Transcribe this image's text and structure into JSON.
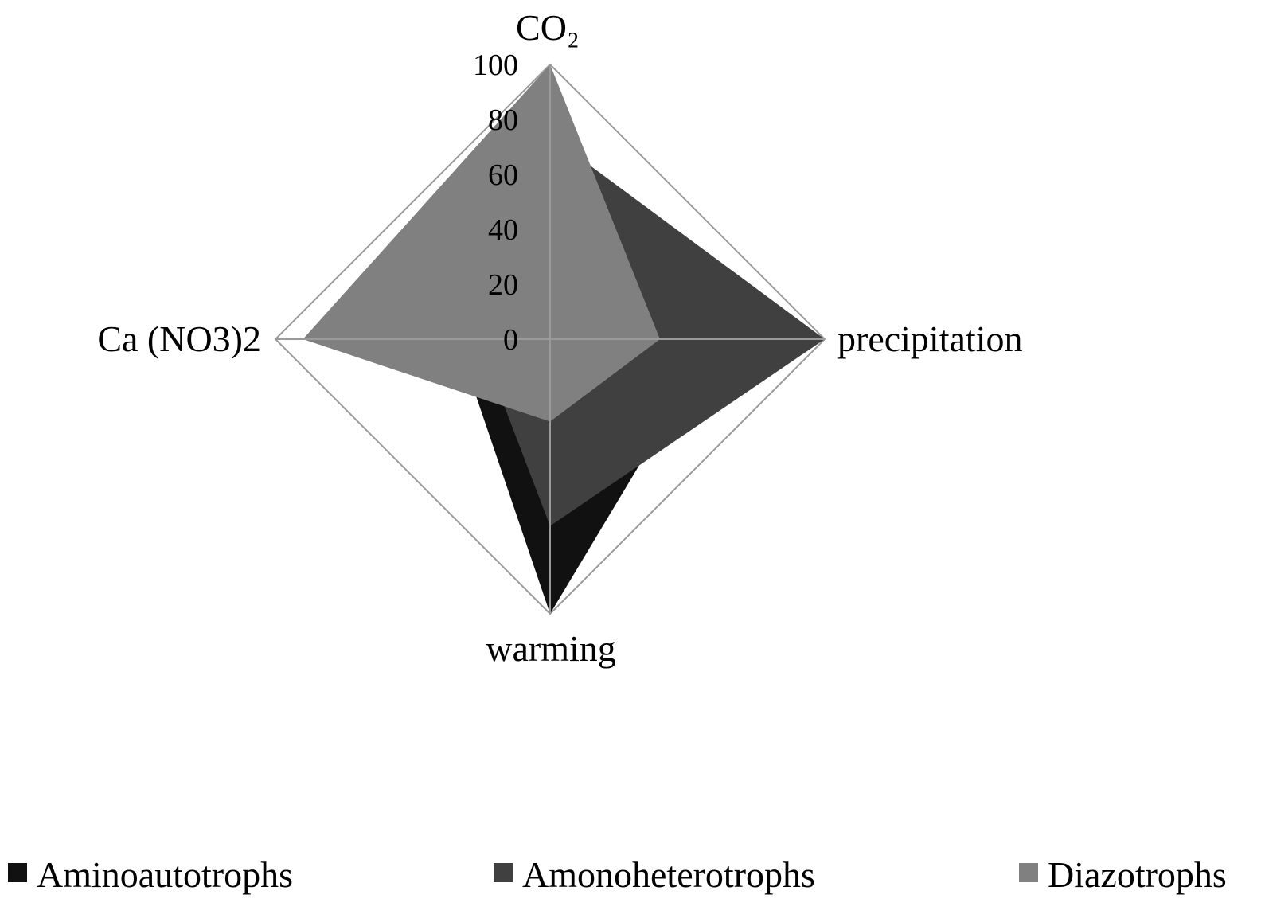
{
  "chart_data": {
    "type": "radar",
    "categories": [
      "CO₂",
      "precipitation",
      "warming",
      "Ca (NO3)2"
    ],
    "axis_range": [
      0,
      100
    ],
    "ticks": [
      "0",
      "20",
      "40",
      "60",
      "80",
      "100"
    ],
    "grid": true,
    "legend_position": "bottom",
    "series": [
      {
        "name": "Aminoautotrophs",
        "color": "#111111",
        "values": [
          16,
          60,
          100,
          34
        ]
      },
      {
        "name": "Amonoheterotrophs",
        "color": "#404040",
        "values": [
          74,
          100,
          68,
          26
        ]
      },
      {
        "name": "Diazotrophs",
        "color": "#808080",
        "values": [
          100,
          40,
          30,
          90
        ]
      }
    ]
  }
}
